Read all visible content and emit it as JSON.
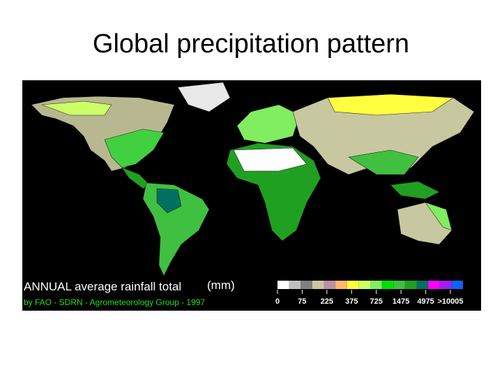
{
  "title": "Global precipitation pattern",
  "map": {
    "caption": "ANNUAL average rainfall total",
    "unit": "(mm)",
    "credit": "by FAO - SDRN - Agrometeorology Group - 1997",
    "legend": {
      "colors": [
        "#ffffff",
        "#c0c0c0",
        "#808080",
        "#c8c8a0",
        "#b890a8",
        "#ffb870",
        "#ffff40",
        "#ccff66",
        "#80ee60",
        "#00e000",
        "#40c040",
        "#20a020",
        "#007060",
        "#ff00ff",
        "#a020f0",
        "#1060ff"
      ],
      "labels": [
        "0",
        "75",
        "225",
        "375",
        "725",
        "1475",
        "4975",
        ">10005"
      ]
    }
  }
}
